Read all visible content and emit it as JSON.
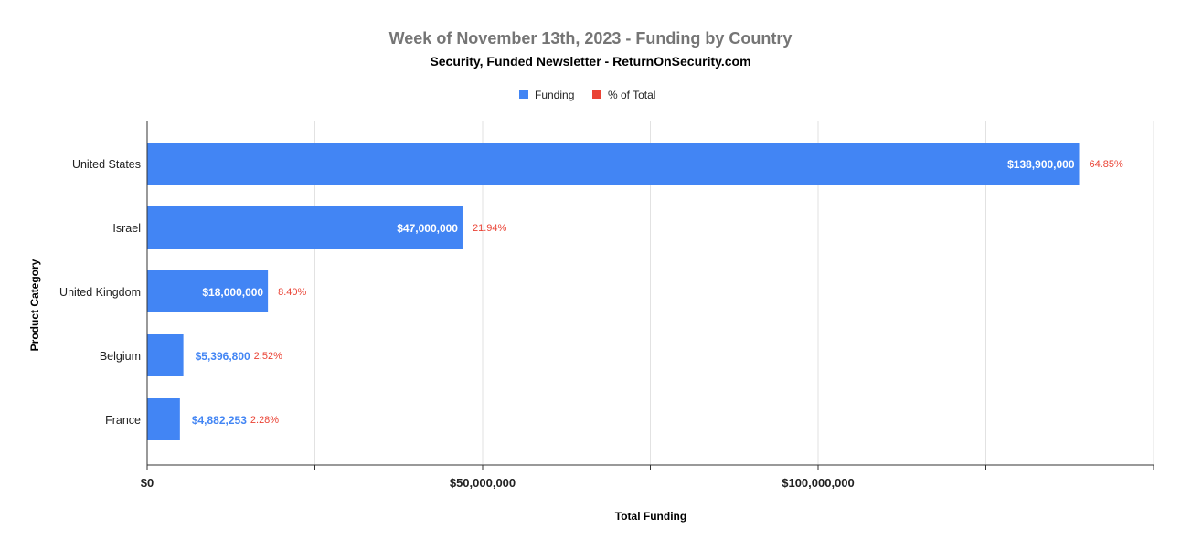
{
  "chart_data": {
    "type": "bar",
    "orientation": "horizontal",
    "title": "Week of November 13th, 2023 - Funding by Country",
    "subtitle": "Security, Funded Newsletter - ReturnOnSecurity.com",
    "xlabel": "Total Funding",
    "ylabel": "Product Category",
    "categories": [
      "United States",
      "Israel",
      "United Kingdom",
      "Belgium",
      "France"
    ],
    "series": [
      {
        "name": "Funding",
        "color": "#4285f4",
        "values": [
          138900000,
          47000000,
          18000000,
          5396800,
          4882253
        ],
        "labels": [
          "$138,900,000",
          "$47,000,000",
          "$18,000,000",
          "$5,396,800",
          "$4,882,253"
        ]
      },
      {
        "name": "% of Total",
        "color": "#ea4335",
        "values": [
          64.85,
          21.94,
          8.4,
          2.52,
          2.28
        ],
        "labels": [
          "64.85%",
          "21.94%",
          "8.40%",
          "2.52%",
          "2.28%"
        ]
      }
    ],
    "xlim": [
      0,
      150000000
    ],
    "xticks": [
      0,
      50000000,
      100000000
    ],
    "xtick_labels": [
      "$0",
      "$50,000,000",
      "$100,000,000"
    ],
    "minor_gridlines": true,
    "grid": true,
    "legend_position": "top"
  }
}
